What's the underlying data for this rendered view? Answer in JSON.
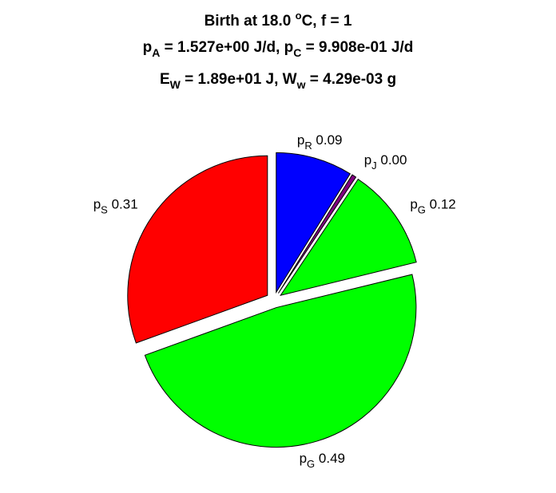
{
  "chart_data": {
    "type": "pie",
    "title_lines": [
      [
        {
          "t": "Birth at 18.0 "
        },
        {
          "t": "o",
          "sup": true
        },
        {
          "t": "C, f = 1"
        }
      ],
      [
        {
          "t": "p"
        },
        {
          "t": "A",
          "sub": true
        },
        {
          "t": " = 1.527e+00 J/d, p"
        },
        {
          "t": "C",
          "sub": true
        },
        {
          "t": " = 9.908e-01 J/d"
        }
      ],
      [
        {
          "t": "E"
        },
        {
          "t": "W",
          "sub": true
        },
        {
          "t": " = 1.89e+01 J, W"
        },
        {
          "t": "w",
          "sub": true
        },
        {
          "t": " = 4.29e-03 g"
        }
      ]
    ],
    "slices": [
      {
        "base": "p",
        "sub": "R",
        "value": 0.09,
        "text": "0.09",
        "color": "#0000ff"
      },
      {
        "base": "p",
        "sub": "J",
        "value": 0.005,
        "text": "0.00",
        "color": "#800080"
      },
      {
        "base": "p",
        "sub": "G",
        "value": 0.12,
        "text": "0.12",
        "color": "#00ff00"
      },
      {
        "base": "p",
        "sub": "G",
        "value": 0.49,
        "text": "0.49",
        "color": "#00ff00"
      },
      {
        "base": "p",
        "sub": "S",
        "value": 0.31,
        "text": "0.31",
        "color": "#ff0000"
      }
    ],
    "start": "top",
    "direction": "clockwise",
    "exploded": true
  }
}
